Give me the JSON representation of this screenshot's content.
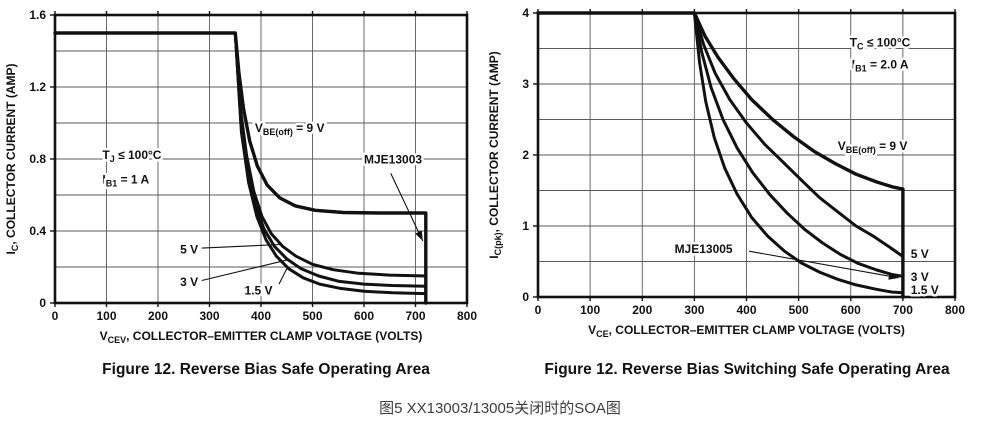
{
  "page": {
    "bottom_caption": "图5 XX13003/13005关闭时的SOA图",
    "colors": {
      "line": "#111111",
      "grid": "#58595b",
      "caption": "#121212",
      "subcaption": "#3d3d3d",
      "background": "#ffffff"
    }
  },
  "chart_data": [
    {
      "type": "line",
      "title": "Figure 12. Reverse Bias Safe Operating Area",
      "xlabel": "VCEV, COLLECTOR–EMITTER CLAMP VOLTAGE (VOLTS)",
      "ylabel": "IC, COLLECTOR CURRENT (AMP)",
      "xlabel_parts": [
        {
          "t": "V"
        },
        {
          "t": "CEV",
          "sub": true
        },
        {
          "t": ", COLLECTOR–EMITTER CLAMP VOLTAGE (VOLTS)"
        }
      ],
      "ylabel_parts": [
        {
          "t": "I"
        },
        {
          "t": "C",
          "sub": true
        },
        {
          "t": ", COLLECTOR CURRENT (AMP)"
        }
      ],
      "xlim": [
        0,
        800
      ],
      "ylim": [
        0,
        1.6
      ],
      "grid": true,
      "legend_position": "none",
      "xgrid_step": 100,
      "ygrid_step": 0.2,
      "xticks": [
        0,
        100,
        200,
        300,
        400,
        500,
        600,
        700,
        800
      ],
      "xtick_labels": [
        "0",
        "100",
        "200",
        "300",
        "400",
        "500",
        "600",
        "700",
        "800"
      ],
      "yticks": [
        {
          "v": 0,
          "label": "0"
        },
        {
          "v": 0.4,
          "label": "0.4"
        },
        {
          "v": 0.8,
          "label": "0.8"
        },
        {
          "v": 1.2,
          "label": "1.2"
        },
        {
          "v": 1.6,
          "label": "1.6"
        }
      ],
      "series": [
        {
          "id": "vbe-9v",
          "name": "VBE(off) = 9 V",
          "width": 3.4,
          "points": [
            [
              0,
              1.5
            ],
            [
              350,
              1.5
            ],
            [
              357,
              1.28
            ],
            [
              366,
              1.08
            ],
            [
              378,
              0.9
            ],
            [
              393,
              0.76
            ],
            [
              412,
              0.655
            ],
            [
              436,
              0.585
            ],
            [
              466,
              0.54
            ],
            [
              505,
              0.515
            ],
            [
              560,
              0.503
            ],
            [
              630,
              0.5
            ],
            [
              720,
              0.5
            ],
            [
              720,
              0
            ]
          ]
        },
        {
          "id": "vbe-5v",
          "name": "5 V",
          "width": 3,
          "points": [
            [
              350,
              1.5
            ],
            [
              360,
              1.08
            ],
            [
              372,
              0.82
            ],
            [
              386,
              0.62
            ],
            [
              402,
              0.48
            ],
            [
              420,
              0.385
            ],
            [
              442,
              0.315
            ],
            [
              468,
              0.26
            ],
            [
              500,
              0.215
            ],
            [
              540,
              0.185
            ],
            [
              590,
              0.165
            ],
            [
              650,
              0.155
            ],
            [
              720,
              0.15
            ]
          ]
        },
        {
          "id": "vbe-3v",
          "name": "3 V",
          "width": 3,
          "points": [
            [
              350,
              1.5
            ],
            [
              361,
              1.0
            ],
            [
              374,
              0.73
            ],
            [
              389,
              0.54
            ],
            [
              406,
              0.41
            ],
            [
              426,
              0.315
            ],
            [
              450,
              0.245
            ],
            [
              478,
              0.19
            ],
            [
              512,
              0.15
            ],
            [
              552,
              0.12
            ],
            [
              600,
              0.105
            ],
            [
              655,
              0.097
            ],
            [
              720,
              0.093
            ]
          ]
        },
        {
          "id": "vbe-1p5v",
          "name": "1.5 V",
          "width": 3,
          "points": [
            [
              350,
              1.5
            ],
            [
              362,
              0.95
            ],
            [
              376,
              0.67
            ],
            [
              392,
              0.48
            ],
            [
              410,
              0.35
            ],
            [
              430,
              0.26
            ],
            [
              454,
              0.19
            ],
            [
              482,
              0.14
            ],
            [
              514,
              0.105
            ],
            [
              552,
              0.082
            ],
            [
              600,
              0.065
            ],
            [
              655,
              0.057
            ],
            [
              720,
              0.052
            ]
          ]
        }
      ],
      "annotations": [
        {
          "id": "cond-tj",
          "x": 92,
          "y": 0.8,
          "anchor": "start",
          "parts": [
            {
              "t": "T"
            },
            {
              "t": "J",
              "sub": true
            },
            {
              "t": " ≤ 100°C"
            }
          ]
        },
        {
          "id": "cond-ib1",
          "x": 92,
          "y": 0.665,
          "anchor": "start",
          "parts": [
            {
              "t": "I"
            },
            {
              "t": "B1",
              "sub": true
            },
            {
              "t": " = 1 A"
            }
          ]
        },
        {
          "id": "vbe-off",
          "x": 388,
          "y": 0.95,
          "anchor": "start",
          "parts": [
            {
              "t": "V"
            },
            {
              "t": "BE(off)",
              "sub": true
            },
            {
              "t": " = 9 V"
            }
          ]
        },
        {
          "id": "part-number",
          "x": 600,
          "y": 0.775,
          "anchor": "start",
          "parts": [
            {
              "t": "MJE13003"
            }
          ]
        },
        {
          "id": "lbl-5v",
          "x": 278,
          "y": 0.275,
          "anchor": "end",
          "parts": [
            {
              "t": "5 V"
            }
          ]
        },
        {
          "id": "lbl-3v",
          "x": 278,
          "y": 0.095,
          "anchor": "end",
          "parts": [
            {
              "t": "3 V"
            }
          ]
        },
        {
          "id": "lbl-1p5v",
          "x": 368,
          "y": 0.048,
          "anchor": "start",
          "parts": [
            {
              "t": "1.5 V"
            }
          ]
        }
      ],
      "leaders": [
        {
          "from": [
            285,
            0.305
          ],
          "to": [
            438,
            0.325
          ],
          "arrow": false
        },
        {
          "from": [
            285,
            0.125
          ],
          "to": [
            452,
            0.24
          ],
          "arrow": false
        },
        {
          "from": [
            652,
            0.72
          ],
          "to": [
            714,
            0.345
          ],
          "arrow": true
        },
        {
          "from": [
            435,
            0.105
          ],
          "to": [
            450,
            0.19
          ],
          "arrow": false
        }
      ]
    },
    {
      "type": "line",
      "title": "Figure 12. Reverse Bias Switching Safe Operating Area",
      "xlabel": "VCE, COLLECTOR–EMITTER CLAMP VOLTAGE (VOLTS)",
      "ylabel": "IC(pk), COLLECTOR CURRENT (AMP)",
      "xlabel_parts": [
        {
          "t": "V"
        },
        {
          "t": "CE",
          "sub": true
        },
        {
          "t": ", COLLECTOR–EMITTER CLAMP VOLTAGE (VOLTS)"
        }
      ],
      "ylabel_parts": [
        {
          "t": "I"
        },
        {
          "t": "C(pk)",
          "sub": true
        },
        {
          "t": ", COLLECTOR CURRENT (AMP)"
        }
      ],
      "xlim": [
        0,
        800
      ],
      "ylim": [
        0,
        4
      ],
      "grid": true,
      "legend_position": "none",
      "xgrid_step": 100,
      "ygrid_step": 0.5,
      "xticks": [
        0,
        100,
        200,
        300,
        400,
        500,
        600,
        700,
        800
      ],
      "xtick_labels": [
        "0",
        "100",
        "200",
        "300",
        "400",
        "500",
        "600",
        "700",
        "800"
      ],
      "yticks": [
        {
          "v": 0,
          "label": "0"
        },
        {
          "v": 1,
          "label": "1"
        },
        {
          "v": 2,
          "label": "2"
        },
        {
          "v": 3,
          "label": "3"
        },
        {
          "v": 4,
          "label": "4"
        }
      ],
      "series": [
        {
          "id": "vbe-9v",
          "name": "VBE(off) = 9 V",
          "width": 3.4,
          "points": [
            [
              0,
              4
            ],
            [
              300,
              4
            ],
            [
              320,
              3.68
            ],
            [
              345,
              3.38
            ],
            [
              375,
              3.08
            ],
            [
              410,
              2.78
            ],
            [
              450,
              2.5
            ],
            [
              490,
              2.26
            ],
            [
              530,
              2.05
            ],
            [
              570,
              1.88
            ],
            [
              610,
              1.73
            ],
            [
              650,
              1.62
            ],
            [
              680,
              1.55
            ],
            [
              700,
              1.52
            ],
            [
              700,
              0
            ]
          ]
        },
        {
          "id": "vbe-5v",
          "name": "5 V",
          "width": 3,
          "points": [
            [
              300,
              4
            ],
            [
              318,
              3.55
            ],
            [
              340,
              3.15
            ],
            [
              368,
              2.78
            ],
            [
              400,
              2.45
            ],
            [
              435,
              2.15
            ],
            [
              470,
              1.9
            ],
            [
              505,
              1.65
            ],
            [
              540,
              1.4
            ],
            [
              575,
              1.2
            ],
            [
              610,
              1.0
            ],
            [
              645,
              0.85
            ],
            [
              675,
              0.7
            ],
            [
              700,
              0.57
            ]
          ]
        },
        {
          "id": "vbe-3v",
          "name": "3 V",
          "width": 3,
          "points": [
            [
              300,
              4
            ],
            [
              314,
              3.45
            ],
            [
              332,
              2.95
            ],
            [
              355,
              2.5
            ],
            [
              382,
              2.1
            ],
            [
              412,
              1.75
            ],
            [
              445,
              1.44
            ],
            [
              478,
              1.18
            ],
            [
              512,
              0.95
            ],
            [
              546,
              0.76
            ],
            [
              580,
              0.6
            ],
            [
              615,
              0.47
            ],
            [
              650,
              0.38
            ],
            [
              678,
              0.32
            ],
            [
              700,
              0.29
            ]
          ]
        },
        {
          "id": "vbe-1p5v",
          "name": "1.5 V",
          "width": 3,
          "points": [
            [
              300,
              4
            ],
            [
              310,
              3.3
            ],
            [
              322,
              2.75
            ],
            [
              338,
              2.25
            ],
            [
              358,
              1.82
            ],
            [
              382,
              1.45
            ],
            [
              410,
              1.12
            ],
            [
              440,
              0.86
            ],
            [
              472,
              0.65
            ],
            [
              505,
              0.48
            ],
            [
              540,
              0.35
            ],
            [
              575,
              0.25
            ],
            [
              610,
              0.17
            ],
            [
              648,
              0.11
            ],
            [
              678,
              0.07
            ],
            [
              700,
              0.06
            ]
          ]
        }
      ],
      "annotations": [
        {
          "id": "cond-tc",
          "x": 598,
          "y": 3.53,
          "anchor": "start",
          "parts": [
            {
              "t": "T"
            },
            {
              "t": "C",
              "sub": true
            },
            {
              "t": " ≤ 100°C"
            }
          ]
        },
        {
          "id": "cond-ib1",
          "x": 602,
          "y": 3.22,
          "anchor": "start",
          "parts": [
            {
              "t": "I"
            },
            {
              "t": "B1",
              "sub": true
            },
            {
              "t": " = 2.0 A"
            }
          ]
        },
        {
          "id": "vbe-off",
          "x": 575,
          "y": 2.07,
          "anchor": "start",
          "parts": [
            {
              "t": "V"
            },
            {
              "t": "BE(off)",
              "sub": true
            },
            {
              "t": " = 9 V"
            }
          ]
        },
        {
          "id": "part-number",
          "x": 262,
          "y": 0.62,
          "anchor": "start",
          "parts": [
            {
              "t": "MJE13005"
            }
          ]
        },
        {
          "id": "lbl-5v",
          "x": 715,
          "y": 0.55,
          "anchor": "start",
          "parts": [
            {
              "t": "5 V"
            }
          ]
        },
        {
          "id": "lbl-3v",
          "x": 715,
          "y": 0.225,
          "anchor": "start",
          "parts": [
            {
              "t": "3 V"
            }
          ]
        },
        {
          "id": "lbl-1p5v",
          "x": 715,
          "y": 0.04,
          "anchor": "start",
          "parts": [
            {
              "t": "1.5 V"
            }
          ]
        }
      ],
      "leaders": [
        {
          "from": [
            405,
            0.645
          ],
          "to": [
            692,
            0.27
          ],
          "arrow": true
        }
      ]
    }
  ]
}
